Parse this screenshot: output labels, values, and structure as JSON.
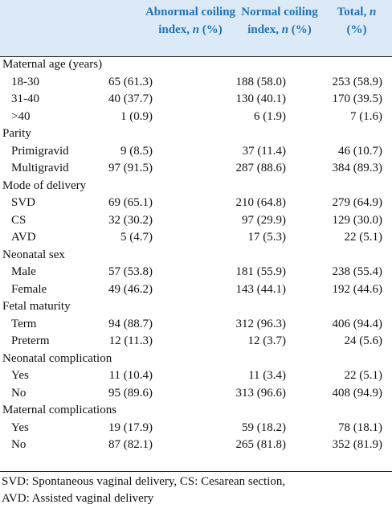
{
  "table": {
    "columns": [
      {
        "before": "Abnormal coiling index,",
        "italic": "n",
        "after": "(%)"
      },
      {
        "before": "Normal coiling index,",
        "italic": "n",
        "after": "(%)"
      },
      {
        "before": "Total,",
        "italic": "n",
        "after": "(%)"
      }
    ],
    "groups": [
      {
        "label": "Maternal age (years)",
        "rows": [
          [
            "18-30",
            "65 (61.3)",
            "188 (58.0)",
            "253 (58.9)"
          ],
          [
            "31-40",
            "40 (37.7)",
            "130 (40.1)",
            "170 (39.5)"
          ],
          [
            ">40",
            "1 (0.9)",
            "6 (1.9)",
            "7 (1.6)"
          ]
        ]
      },
      {
        "label": "Parity",
        "rows": [
          [
            "Primigravid",
            "9 (8.5)",
            "37 (11.4)",
            "46 (10.7)"
          ],
          [
            "Multigravid",
            "97 (91.5)",
            "287 (88.6)",
            "384 (89.3)"
          ]
        ]
      },
      {
        "label": "Mode of delivery",
        "rows": [
          [
            "SVD",
            "69 (65.1)",
            "210 (64.8)",
            "279 (64.9)"
          ],
          [
            "CS",
            "32 (30.2)",
            "97 (29.9)",
            "129 (30.0)"
          ],
          [
            "AVD",
            "5 (4.7)",
            "17 (5.3)",
            "22 (5.1)"
          ]
        ]
      },
      {
        "label": "Neonatal sex",
        "rows": [
          [
            "Male",
            "57 (53.8)",
            "181 (55.9)",
            "238 (55.4)"
          ],
          [
            "Female",
            "49 (46.2)",
            "143 (44.1)",
            "192 (44.6)"
          ]
        ]
      },
      {
        "label": "Fetal maturity",
        "rows": [
          [
            "Term",
            "94 (88.7)",
            "312 (96.3)",
            "406 (94.4)"
          ],
          [
            "Preterm",
            "12 (11.3)",
            "12 (3.7)",
            "24 (5.6)"
          ]
        ]
      },
      {
        "label": "Neonatal complication",
        "rows": [
          [
            "Yes",
            "11 (10.4)",
            "11 (3.4)",
            "22 (5.1)"
          ],
          [
            "No",
            "95 (89.6)",
            "313 (96.6)",
            "408 (94.9)"
          ]
        ]
      },
      {
        "label": "Maternal complications",
        "rows": [
          [
            "Yes",
            "19 (17.9)",
            "59 (18.2)",
            "78 (18.1)"
          ],
          [
            "No",
            "87 (82.1)",
            "265 (81.8)",
            "352 (81.9)"
          ]
        ]
      }
    ],
    "footnote": [
      "SVD: Spontaneous vaginal delivery, CS: Cesarean section,",
      "AVD: Assisted vaginal delivery"
    ]
  }
}
